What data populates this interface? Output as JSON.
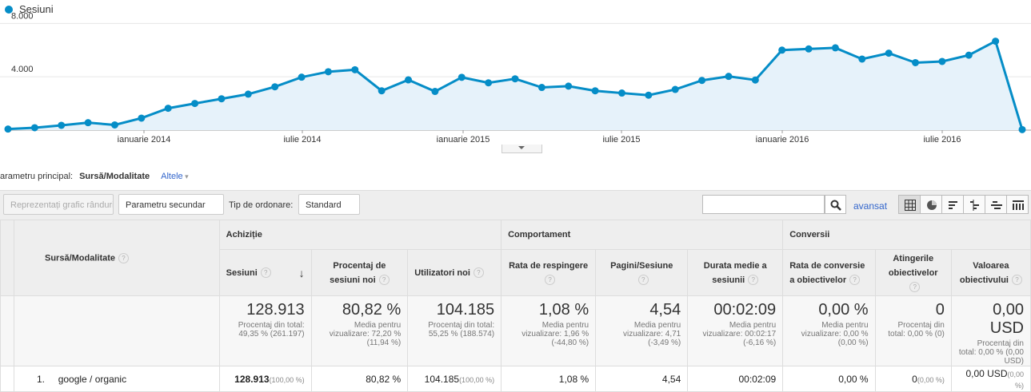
{
  "chart_data": {
    "type": "area",
    "series": [
      {
        "name": "Sesiuni",
        "values": [
          80,
          180,
          360,
          560,
          390,
          900,
          1640,
          2000,
          2350,
          2700,
          3250,
          3970,
          4380,
          4530,
          2950,
          3770,
          2900,
          3960,
          3550,
          3850,
          3200,
          3300,
          2950,
          2780,
          2620,
          3050,
          3730,
          4030,
          3760,
          6000,
          6090,
          6170,
          5330,
          5770,
          5060,
          5150,
          5620,
          6670,
          40
        ]
      }
    ],
    "x_labels": [
      "ianuarie 2014",
      "iulie 2014",
      "ianuarie 2015",
      "iulie 2015",
      "ianuarie 2016",
      "iulie 2016"
    ],
    "y_ticks": [
      "4.000",
      "8.000"
    ],
    "ylim": [
      0,
      8800
    ],
    "color": "#058dc7"
  },
  "legend": "Sesiuni",
  "dimension": {
    "label": "arametru principal:",
    "current": "Sursă/Modalitate",
    "other": "Altele"
  },
  "toolbar": {
    "plot_rows": "Reprezentați grafic rândurile",
    "secondary": "Parametru secundar",
    "sort_label": "Tip de ordonare:",
    "sort_value": "Standard",
    "advanced": "avansat"
  },
  "table": {
    "dim_header": "Sursă/Modalitate",
    "groups": [
      "Achiziție",
      "Comportament",
      "Conversii"
    ],
    "columns": [
      "Sesiuni",
      "Procentaj de sesiuni noi",
      "Utilizatori noi",
      "Rata de respingere",
      "Pagini/Sesiune",
      "Durata medie a sesiunii",
      "Rata de conversie a obiectivelor",
      "Atingerile obiectivelor",
      "Valoarea obiectivului"
    ],
    "totals": [
      {
        "value": "128.913",
        "sub": "Procentaj din total: 49,35 % (261.197)"
      },
      {
        "value": "80,82 %",
        "sub": "Media pentru vizualizare: 72,20 % (11,94 %)"
      },
      {
        "value": "104.185",
        "sub": "Procentaj din total: 55,25 % (188.574)"
      },
      {
        "value": "1,08 %",
        "sub": "Media pentru vizualizare: 1,96 % (-44,80 %)"
      },
      {
        "value": "4,54",
        "sub": "Media pentru vizualizare: 4,71 (-3,49 %)"
      },
      {
        "value": "00:02:09",
        "sub": "Media pentru vizualizare: 00:02:17 (-6,16 %)"
      },
      {
        "value": "0,00 %",
        "sub": "Media pentru vizualizare: 0,00 % (0,00 %)"
      },
      {
        "value": "0",
        "sub": "Procentaj din total: 0,00 % (0)"
      },
      {
        "value": "0,00 USD",
        "sub": "Procentaj din total: 0,00 % (0,00 USD)"
      }
    ],
    "row": {
      "index": "1.",
      "source": "google / organic",
      "cells": [
        {
          "v": "128.913",
          "p": "(100,00 %)"
        },
        {
          "v": "80,82 %",
          "p": ""
        },
        {
          "v": "104.185",
          "p": "(100,00 %)"
        },
        {
          "v": "1,08 %",
          "p": ""
        },
        {
          "v": "4,54",
          "p": ""
        },
        {
          "v": "00:02:09",
          "p": ""
        },
        {
          "v": "0,00 %",
          "p": ""
        },
        {
          "v": "0",
          "p": "(0,00 %)"
        },
        {
          "v": "0,00 USD",
          "p": "(0,00 %)"
        }
      ]
    }
  }
}
